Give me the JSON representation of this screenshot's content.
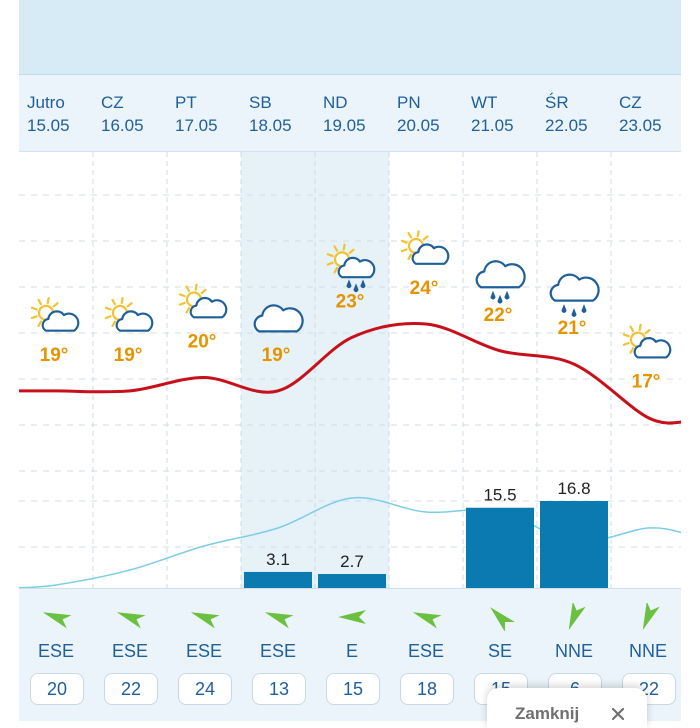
{
  "days": [
    {
      "name": "Jutro",
      "date": "15.05",
      "temp": "19°",
      "icon": "partly-cloudy-icon",
      "wind_dir": "ESE",
      "wind_speed": "20",
      "precip": ""
    },
    {
      "name": "CZ",
      "date": "16.05",
      "temp": "19°",
      "icon": "partly-cloudy-icon",
      "wind_dir": "ESE",
      "wind_speed": "22",
      "precip": ""
    },
    {
      "name": "PT",
      "date": "17.05",
      "temp": "20°",
      "icon": "sunny-cloud-icon",
      "wind_dir": "ESE",
      "wind_speed": "24",
      "precip": ""
    },
    {
      "name": "SB",
      "date": "18.05",
      "temp": "19°",
      "icon": "cloudy-icon",
      "wind_dir": "ESE",
      "wind_speed": "13",
      "precip": "3.1"
    },
    {
      "name": "ND",
      "date": "19.05",
      "temp": "23°",
      "icon": "partly-cloudy-rain-icon",
      "wind_dir": "E",
      "wind_speed": "15",
      "precip": "2.7"
    },
    {
      "name": "PN",
      "date": "20.05",
      "temp": "24°",
      "icon": "partly-cloudy-icon",
      "wind_dir": "ESE",
      "wind_speed": "18",
      "precip": ""
    },
    {
      "name": "WT",
      "date": "21.05",
      "temp": "22°",
      "icon": "cloud-rain-icon",
      "wind_dir": "SE",
      "wind_speed": "15",
      "precip": "15.5"
    },
    {
      "name": "ŚR",
      "date": "22.05",
      "temp": "21°",
      "icon": "cloud-heavy-rain-icon",
      "wind_dir": "NNE",
      "wind_speed": "6",
      "precip": "16.8"
    },
    {
      "name": "CZ",
      "date": "23.05",
      "temp": "17°",
      "icon": "partly-cloudy-icon",
      "wind_dir": "NNE",
      "wind_speed": "22",
      "precip": ""
    }
  ],
  "close_button": {
    "label": "Zamknij"
  },
  "colors": {
    "accent": "#1f5f9a",
    "temp_line": "#c8101a",
    "temp_label": "#e59400",
    "precip_bar": "#0b7ab0",
    "humidity_line": "#7ccde8",
    "wind_arrow": "#6cc040",
    "sun": "#f2c230"
  },
  "chart_data": {
    "type": "line",
    "categories": [
      "15.05",
      "16.05",
      "17.05",
      "18.05",
      "19.05",
      "20.05",
      "21.05",
      "22.05",
      "23.05"
    ],
    "series": [
      {
        "name": "temperature",
        "values": [
          19,
          19,
          20,
          19,
          23,
          24,
          22,
          21,
          17
        ]
      },
      {
        "name": "precipitation",
        "values": [
          0,
          0,
          0,
          3.1,
          2.7,
          0,
          15.5,
          16.8,
          0
        ]
      }
    ],
    "title": "",
    "xlabel": "",
    "ylabel": ""
  }
}
